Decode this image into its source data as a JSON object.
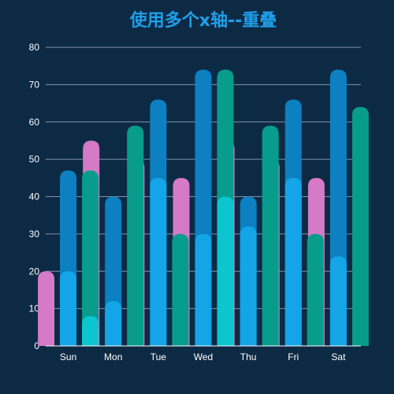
{
  "chart_data": {
    "type": "bar",
    "title": "使用多个x轴--重叠",
    "categories": [
      "Sun",
      "Mon",
      "Tue",
      "Wed",
      "Thu",
      "Fri",
      "Sat"
    ],
    "ylim": [
      0,
      80
    ],
    "yticks": [
      0,
      10,
      20,
      30,
      40,
      50,
      60,
      70,
      80
    ],
    "grid": true,
    "bar_style": "rounded, overlapping (multiple x axes)",
    "series": [
      {
        "values": [
          20,
          55,
          50,
          45,
          55,
          50,
          45
        ]
      },
      {
        "values": [
          47,
          40,
          66,
          74,
          40,
          66,
          74
        ]
      },
      {
        "values": [
          20,
          12,
          45,
          30,
          32,
          45,
          24
        ]
      },
      {
        "values": [
          47,
          59,
          30,
          74,
          59,
          30,
          64
        ]
      },
      {
        "values": [
          8,
          null,
          null,
          40,
          null,
          null,
          null
        ]
      }
    ]
  },
  "colors": {
    "background": "#0d2a45",
    "title": "#1f9fe8",
    "axis_text": "#ffffff",
    "grid": "#7f93a8",
    "series": [
      "#d47ac6",
      "#0c80c0",
      "#14a5e8",
      "#079c8c",
      "#0bc6cf"
    ]
  }
}
